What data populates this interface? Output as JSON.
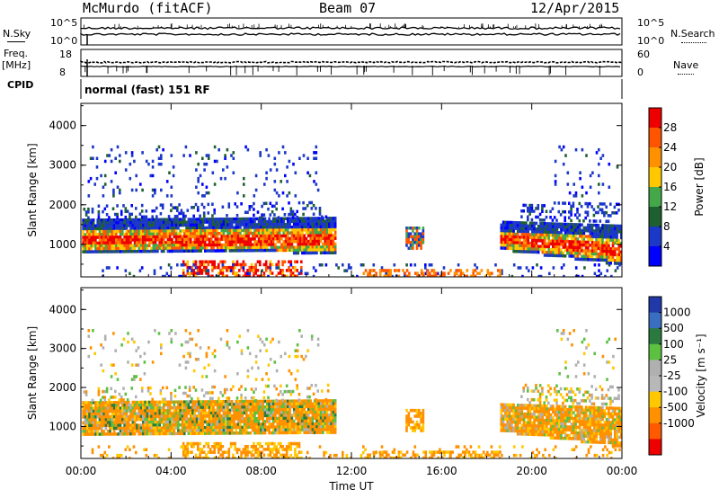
{
  "header": {
    "station": "McMurdo (fitACF)",
    "beam": "Beam 07",
    "date": "12/Apr/2015"
  },
  "panel_labels": {
    "nsky": "N.Sky",
    "freq": "Freq.",
    "freq_unit": "[MHz]",
    "cpid": "CPID",
    "nsearch": "N.Search",
    "nave": "Nave",
    "cpid_value": "normal (fast) 151 RF"
  },
  "chart_data": [
    {
      "type": "line",
      "name": "noise panel",
      "left_ticks": [
        "10^5",
        "10^0"
      ],
      "right_ticks": [
        "10^5",
        "10^0"
      ]
    },
    {
      "type": "line",
      "name": "frequency / nave panel",
      "left_ticks": [
        "18",
        "8"
      ],
      "right_ticks": [
        "60",
        "0"
      ]
    },
    {
      "type": "heatmap",
      "name": "power",
      "ylabel": "Slant Range [km]",
      "xlabel": "",
      "x_ticks": [
        "00:00",
        "04:00",
        "08:00",
        "12:00",
        "16:00",
        "20:00",
        "00:00"
      ],
      "y_ticks": [
        1000,
        2000,
        3000,
        4000
      ],
      "ylim": [
        180,
        4560
      ],
      "colorbar": {
        "label": "Power [dB]",
        "ticks": [
          "28",
          "24",
          "20",
          "16",
          "12",
          "8",
          "4"
        ],
        "colors": [
          "#ee0000",
          "#ff5500",
          "#ff9000",
          "#ffc800",
          "#44a84a",
          "#1e6030",
          "#1c38c8",
          "#0000ff"
        ]
      }
    },
    {
      "type": "heatmap",
      "name": "velocity",
      "ylabel": "Slant Range [km]",
      "xlabel": "Time UT",
      "x_ticks": [
        "00:00",
        "04:00",
        "08:00",
        "12:00",
        "16:00",
        "20:00",
        "00:00"
      ],
      "y_ticks": [
        1000,
        2000,
        3000,
        4000
      ],
      "ylim": [
        180,
        4560
      ],
      "colorbar": {
        "label": "Velocity [m s⁻¹]",
        "ticks": [
          "1000",
          "500",
          "100",
          "25",
          "-25",
          "-100",
          "-500",
          "-1000"
        ],
        "colors": [
          "#2038a8",
          "#3a6ec0",
          "#2a7a40",
          "#5cc040",
          "#b0b0b0",
          "#b8b8b8",
          "#ffc800",
          "#ff9000",
          "#ff5a00",
          "#ee0000"
        ]
      }
    }
  ]
}
